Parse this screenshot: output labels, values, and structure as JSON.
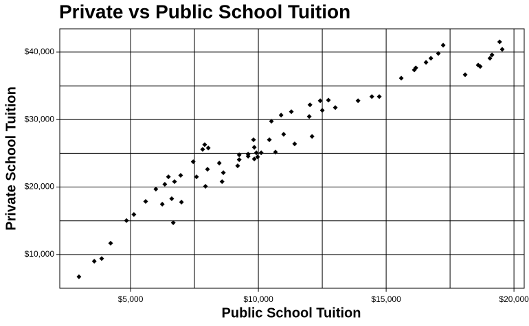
{
  "chart_data": {
    "type": "scatter",
    "title": "Private vs Public School Tuition",
    "x_label": "Public School Tuition",
    "y_label": "Private School Tuition",
    "color": "#000000",
    "grid": true,
    "xlim": [
      2230,
      20400
    ],
    "ylim": [
      5000,
      43450
    ],
    "xticks": [
      {
        "value": 5000,
        "label": "$5,000"
      },
      {
        "value": 10000,
        "label": "$10,000"
      },
      {
        "value": 15000,
        "label": "$15,000"
      },
      {
        "value": 20000,
        "label": "$20,000"
      }
    ],
    "yticks": [
      {
        "value": 10000,
        "label": "$10,000"
      },
      {
        "value": 20000,
        "label": "$20,000"
      },
      {
        "value": 30000,
        "label": "$30,000"
      },
      {
        "value": 40000,
        "label": "$40,000"
      }
    ],
    "xminor": [
      7500,
      12500,
      17500
    ],
    "yminor": [
      15000,
      25000,
      35000
    ],
    "x": [
      2980,
      3580,
      3870,
      4220,
      4840,
      5130,
      5590,
      5990,
      6240,
      6340,
      6480,
      6610,
      6670,
      6720,
      6960,
      6990,
      7450,
      7580,
      7820,
      7900,
      8040,
      7930,
      8010,
      8470,
      8580,
      8630,
      9190,
      9250,
      9250,
      9600,
      9600,
      9810,
      9840,
      9840,
      9920,
      9970,
      10110,
      10430,
      10510,
      10670,
      10890,
      10990,
      11290,
      11420,
      11990,
      12020,
      12100,
      12420,
      12500,
      12740,
      13010,
      13900,
      14440,
      14730,
      15590,
      16100,
      16160,
      16560,
      16750,
      17040,
      17230,
      18090,
      18600,
      18680,
      19060,
      19140,
      19440,
      19540
    ],
    "values": [
      6700,
      9000,
      9400,
      11680,
      15030,
      15940,
      17870,
      19700,
      17460,
      20410,
      21520,
      18270,
      14720,
      20810,
      21730,
      17770,
      23760,
      21520,
      25580,
      26290,
      25790,
      20100,
      22640,
      23550,
      20810,
      22130,
      23150,
      24770,
      24060,
      24570,
      24870,
      27010,
      25890,
      24160,
      25080,
      24470,
      25080,
      27010,
      29750,
      25180,
      30660,
      27820,
      31170,
      26400,
      30460,
      32180,
      27510,
      32790,
      31370,
      32890,
      31780,
      32790,
      33400,
      33400,
      36140,
      37360,
      37660,
      38480,
      39090,
      39800,
      41020,
      36650,
      38070,
      37870,
      39090,
      39590,
      41520,
      40410
    ]
  }
}
